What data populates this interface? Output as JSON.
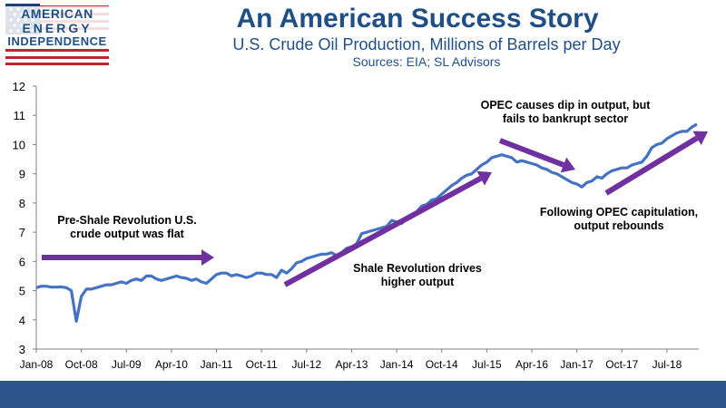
{
  "header": {
    "logo_line1": "AMERICAN",
    "logo_line2": "ENERGY",
    "logo_line3": "INDEPENDENCE",
    "title": "An American Success Story",
    "subtitle": "U.S. Crude Oil Production, Millions of Barrels per Day",
    "sources": "Sources: EIA; SL Advisors"
  },
  "colors": {
    "line": "#4472c4",
    "arrow": "#7030a0",
    "title": "#1f4f87",
    "footer": "#2a548a",
    "flag_red": "#c0262d",
    "flag_blue": "#1f3f7a"
  },
  "chart_data": {
    "type": "line",
    "title": "U.S. Crude Oil Production, Millions of Barrels per Day",
    "xlabel": "",
    "ylabel": "",
    "ylim": [
      3,
      12
    ],
    "yticks": [
      "3",
      "4",
      "5",
      "6",
      "7",
      "8",
      "9",
      "10",
      "11",
      "12"
    ],
    "xticks": [
      "Jan-08",
      "Oct-08",
      "Jul-09",
      "Apr-10",
      "Jan-11",
      "Oct-11",
      "Jul-12",
      "Apr-13",
      "Jan-14",
      "Oct-14",
      "Jul-15",
      "Apr-16",
      "Jan-17",
      "Oct-17",
      "Jul-18"
    ],
    "grid": false,
    "legend": "none",
    "series": [
      {
        "values": [
          5.1,
          5.15,
          5.15,
          5.12,
          5.12,
          5.13,
          5.1,
          5.0,
          3.95,
          4.8,
          5.05,
          5.05,
          5.1,
          5.15,
          5.2,
          5.2,
          5.25,
          5.3,
          5.25,
          5.35,
          5.4,
          5.35,
          5.5,
          5.5,
          5.4,
          5.35,
          5.4,
          5.45,
          5.5,
          5.45,
          5.42,
          5.35,
          5.4,
          5.3,
          5.25,
          5.4,
          5.55,
          5.6,
          5.6,
          5.5,
          5.55,
          5.5,
          5.45,
          5.5,
          5.6,
          5.6,
          5.55,
          5.55,
          5.45,
          5.7,
          5.6,
          5.75,
          5.95,
          6.0,
          6.1,
          6.15,
          6.2,
          6.25,
          6.25,
          6.3,
          6.2,
          6.3,
          6.45,
          6.5,
          6.6,
          6.95,
          7.0,
          7.05,
          7.1,
          7.15,
          7.2,
          7.4,
          7.35,
          7.3,
          7.5,
          7.6,
          7.7,
          7.9,
          7.95,
          8.1,
          8.15,
          8.3,
          8.45,
          8.6,
          8.7,
          8.85,
          8.95,
          9.0,
          9.15,
          9.3,
          9.4,
          9.55,
          9.6,
          9.65,
          9.6,
          9.55,
          9.4,
          9.45,
          9.4,
          9.35,
          9.3,
          9.2,
          9.15,
          9.05,
          9.0,
          8.9,
          8.8,
          8.7,
          8.65,
          8.55,
          8.7,
          8.75,
          8.9,
          8.85,
          9.0,
          9.1,
          9.15,
          9.2,
          9.2,
          9.3,
          9.35,
          9.4,
          9.6,
          9.9,
          10.0,
          10.05,
          10.2,
          10.3,
          10.4,
          10.45,
          10.45,
          10.6,
          10.7
        ]
      }
    ],
    "annotations": [
      {
        "line1": "Pre-Shale Revolution U.S.",
        "line2": "crude output was flat"
      },
      {
        "line1": "Shale Revolution drives",
        "line2": "higher output"
      },
      {
        "line1": "OPEC causes dip in output, but",
        "line2": "fails to bankrupt sector"
      },
      {
        "line1": "Following OPEC capitulation,",
        "line2": "output rebounds"
      }
    ]
  }
}
